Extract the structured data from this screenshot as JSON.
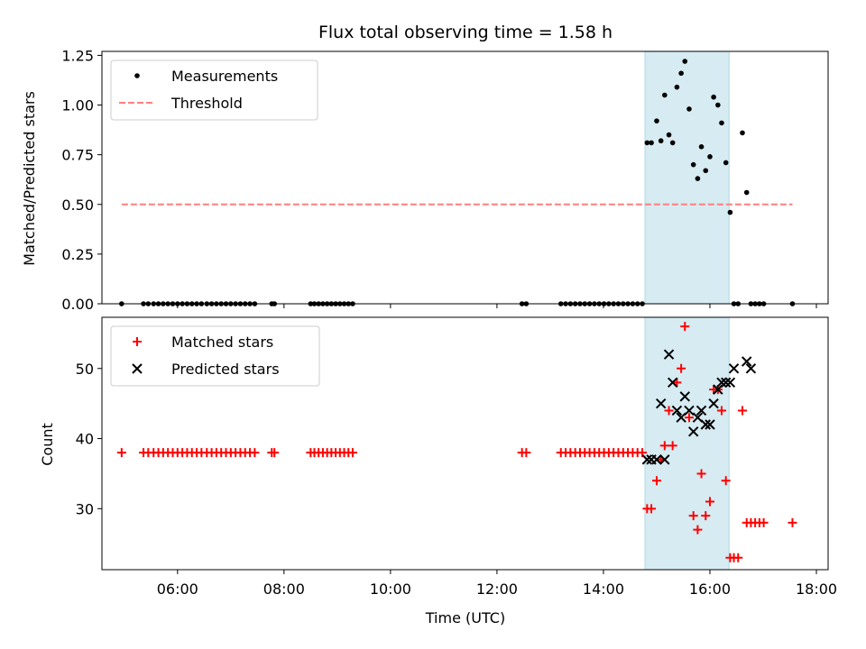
{
  "chart_data": [
    {
      "type": "scatter",
      "title": "Flux total observing time = 1.58 h",
      "xlabel": "",
      "ylabel": "Matched/Predicted stars",
      "xlim": [
        4.58,
        18.22
      ],
      "ylim": [
        0.0,
        1.27
      ],
      "yticks": [
        0.0,
        0.25,
        0.5,
        0.75,
        1.0,
        1.25
      ],
      "ytick_labels": [
        "0.00",
        "0.25",
        "0.50",
        "0.75",
        "1.00",
        "1.25"
      ],
      "x_tick_labels_visible": false,
      "legend_position": "upper-left",
      "shaded_span": [
        14.78,
        16.36
      ],
      "series": [
        {
          "name": "Measurements",
          "marker": "dot",
          "color": "#000000",
          "x": [
            4.95,
            5.36,
            5.45,
            5.55,
            5.64,
            5.73,
            5.82,
            5.91,
            6.0,
            6.09,
            6.18,
            6.27,
            6.36,
            6.45,
            6.55,
            6.64,
            6.73,
            6.82,
            6.91,
            7.0,
            7.09,
            7.18,
            7.27,
            7.36,
            7.45,
            7.77,
            7.82,
            8.5,
            8.57,
            8.65,
            8.73,
            8.81,
            8.89,
            8.97,
            9.05,
            9.13,
            9.21,
            9.29,
            12.47,
            12.55,
            13.2,
            13.29,
            13.38,
            13.47,
            13.56,
            13.65,
            13.74,
            13.83,
            13.92,
            14.01,
            14.1,
            14.19,
            14.28,
            14.37,
            14.46,
            14.55,
            14.64,
            14.73,
            14.82,
            14.9,
            15.0,
            15.08,
            15.15,
            15.23,
            15.3,
            15.38,
            15.46,
            15.53,
            15.61,
            15.69,
            15.77,
            15.84,
            15.92,
            16.0,
            16.07,
            16.15,
            16.22,
            16.3,
            16.38,
            16.45,
            16.53,
            16.61,
            16.69,
            16.77,
            16.85,
            16.93,
            17.01,
            17.55
          ],
          "y": [
            0,
            0,
            0,
            0,
            0,
            0,
            0,
            0,
            0,
            0,
            0,
            0,
            0,
            0,
            0,
            0,
            0,
            0,
            0,
            0,
            0,
            0,
            0,
            0,
            0,
            0,
            0,
            0,
            0,
            0,
            0,
            0,
            0,
            0,
            0,
            0,
            0,
            0,
            0,
            0,
            0,
            0,
            0,
            0,
            0,
            0,
            0,
            0,
            0,
            0,
            0,
            0,
            0,
            0,
            0,
            0,
            0,
            0,
            0.81,
            0.81,
            0.92,
            0.82,
            1.05,
            0.85,
            0.81,
            1.09,
            1.16,
            1.22,
            0.98,
            0.7,
            0.63,
            0.79,
            0.67,
            0.74,
            1.04,
            1.0,
            0.91,
            0.71,
            0.46,
            0,
            0,
            0.86,
            0.56,
            0,
            0,
            0,
            0,
            0
          ]
        },
        {
          "name": "Threshold",
          "type": "line",
          "style": "dashed",
          "color": "#ff7f7f",
          "x": [
            4.95,
            17.55
          ],
          "y": [
            0.5,
            0.5
          ]
        }
      ]
    },
    {
      "type": "scatter",
      "title": "",
      "xlabel": "Time (UTC)",
      "ylabel": "Count",
      "xlim": [
        4.58,
        18.22
      ],
      "ylim": [
        21.3,
        57.3
      ],
      "xticks": [
        6,
        8,
        10,
        12,
        14,
        16,
        18
      ],
      "xtick_labels": [
        "06:00",
        "08:00",
        "10:00",
        "12:00",
        "14:00",
        "16:00",
        "18:00"
      ],
      "yticks": [
        30,
        40,
        50
      ],
      "ytick_labels": [
        "30",
        "40",
        "50"
      ],
      "legend_position": "upper-left",
      "shaded_span": [
        14.78,
        16.36
      ],
      "series": [
        {
          "name": "Matched stars",
          "marker": "plus",
          "color": "#ff0000",
          "x": [
            4.95,
            5.36,
            5.45,
            5.55,
            5.64,
            5.73,
            5.82,
            5.91,
            6.0,
            6.09,
            6.18,
            6.27,
            6.36,
            6.45,
            6.55,
            6.64,
            6.73,
            6.82,
            6.91,
            7.0,
            7.09,
            7.18,
            7.27,
            7.36,
            7.45,
            7.77,
            7.82,
            8.5,
            8.57,
            8.65,
            8.73,
            8.81,
            8.89,
            8.97,
            9.05,
            9.13,
            9.21,
            9.29,
            12.47,
            12.55,
            13.2,
            13.29,
            13.38,
            13.47,
            13.56,
            13.65,
            13.74,
            13.83,
            13.92,
            14.01,
            14.1,
            14.19,
            14.28,
            14.37,
            14.46,
            14.55,
            14.64,
            14.73,
            14.82,
            14.9,
            15.0,
            15.08,
            15.15,
            15.23,
            15.3,
            15.38,
            15.46,
            15.53,
            15.61,
            15.69,
            15.77,
            15.84,
            15.92,
            16.0,
            16.07,
            16.15,
            16.22,
            16.3,
            16.38,
            16.45,
            16.53,
            16.61,
            16.69,
            16.77,
            16.85,
            16.93,
            17.01,
            17.55
          ],
          "y": [
            38,
            38,
            38,
            38,
            38,
            38,
            38,
            38,
            38,
            38,
            38,
            38,
            38,
            38,
            38,
            38,
            38,
            38,
            38,
            38,
            38,
            38,
            38,
            38,
            38,
            38,
            38,
            38,
            38,
            38,
            38,
            38,
            38,
            38,
            38,
            38,
            38,
            38,
            38,
            38,
            38,
            38,
            38,
            38,
            38,
            38,
            38,
            38,
            38,
            38,
            38,
            38,
            38,
            38,
            38,
            38,
            38,
            38,
            30,
            30,
            34,
            37,
            39,
            44,
            39,
            48,
            50,
            56,
            43,
            29,
            27,
            35,
            29,
            31,
            47,
            47,
            44,
            34,
            23,
            23,
            23,
            44,
            28,
            28,
            28,
            28,
            28,
            28
          ]
        },
        {
          "name": "Predicted stars",
          "marker": "x",
          "color": "#000000",
          "x": [
            14.82,
            14.9,
            15.0,
            15.08,
            15.15,
            15.23,
            15.3,
            15.38,
            15.46,
            15.53,
            15.61,
            15.69,
            15.77,
            15.84,
            15.92,
            16.0,
            16.07,
            16.15,
            16.22,
            16.3,
            16.38,
            16.45,
            16.69,
            16.77
          ],
          "y": [
            37,
            37,
            37,
            45,
            37,
            52,
            48,
            44,
            43,
            46,
            44,
            41,
            43,
            44,
            42,
            42,
            45,
            47,
            48,
            48,
            48,
            50,
            51,
            50
          ]
        }
      ]
    }
  ],
  "colors": {
    "span": "#add8e6",
    "threshold": "#ff7f7f",
    "matched": "#ff0000",
    "predicted": "#000000",
    "measurements": "#000000"
  }
}
